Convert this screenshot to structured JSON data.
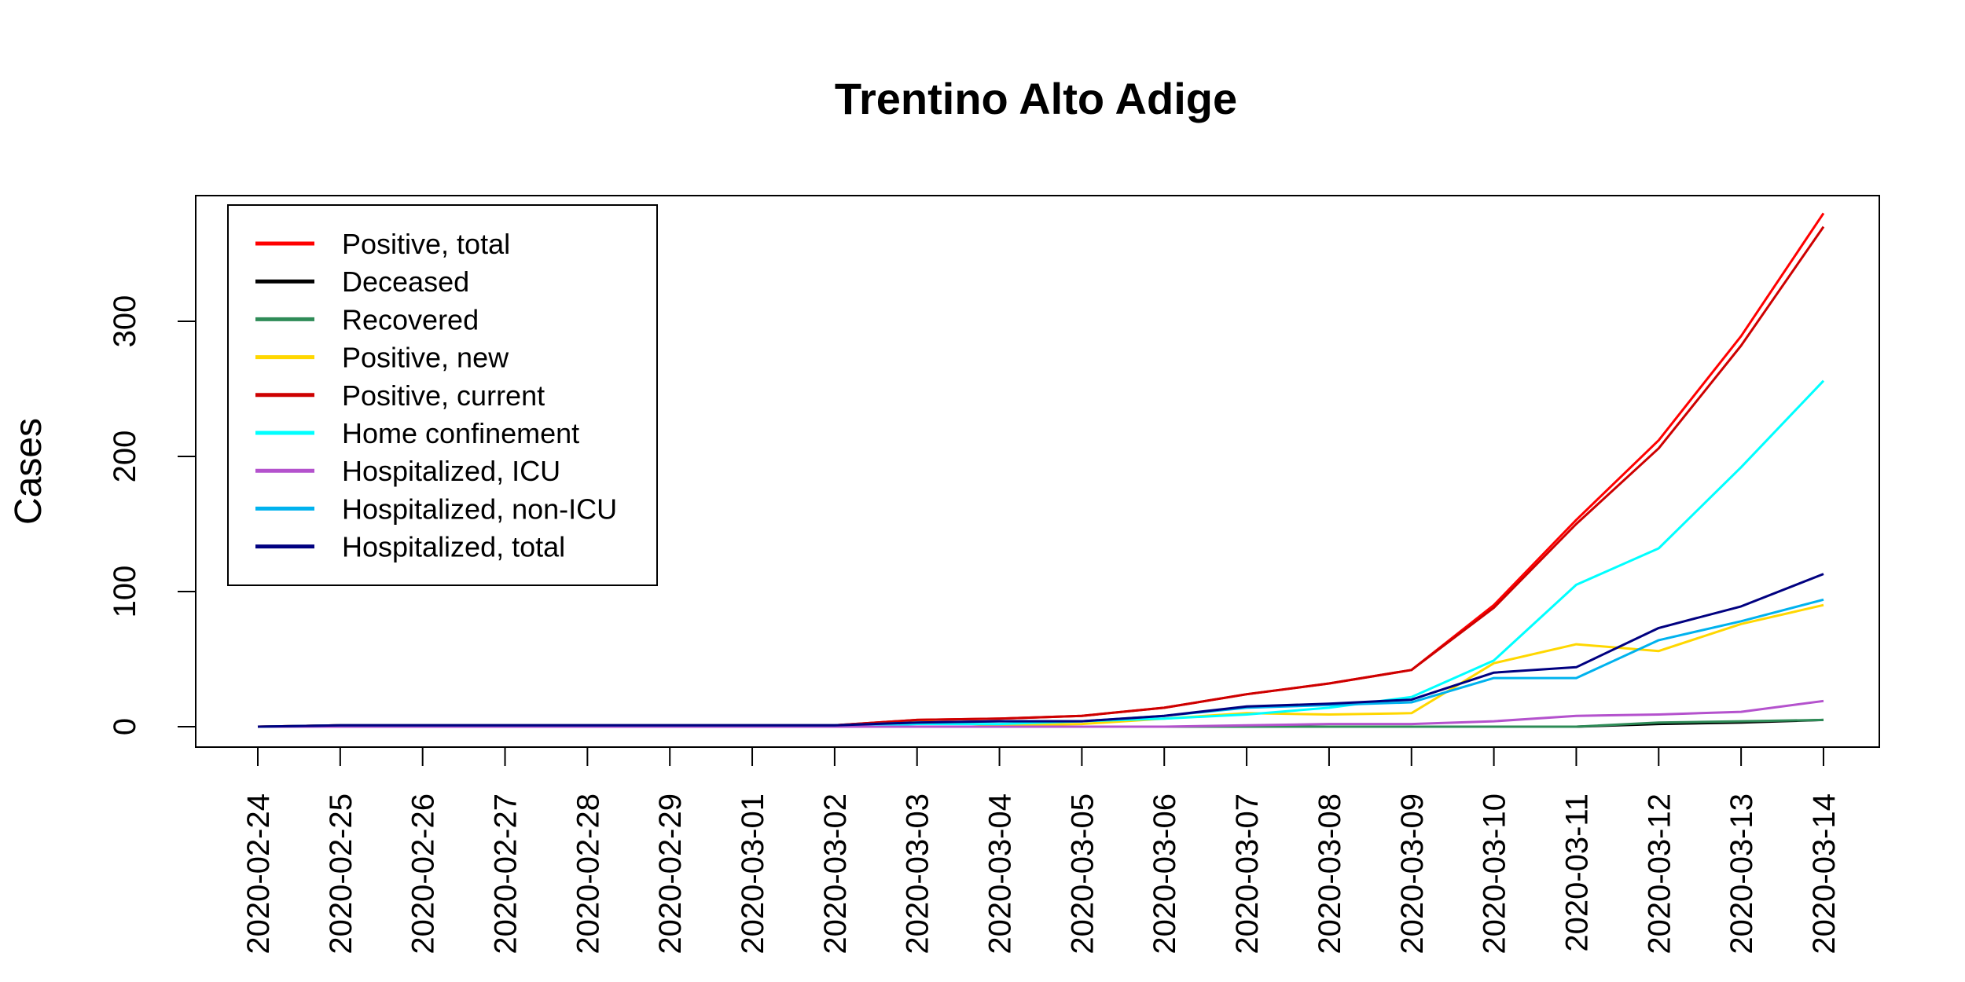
{
  "chart_data": {
    "type": "line",
    "title": "Trentino Alto Adige",
    "xlabel": "",
    "ylabel": "Cases",
    "ylim": [
      0,
      385
    ],
    "yticks": [
      0,
      100,
      200,
      300
    ],
    "grid": false,
    "legend_position": "top-left",
    "x": [
      "2020-02-24",
      "2020-02-25",
      "2020-02-26",
      "2020-02-27",
      "2020-02-28",
      "2020-02-29",
      "2020-03-01",
      "2020-03-02",
      "2020-03-03",
      "2020-03-04",
      "2020-03-05",
      "2020-03-06",
      "2020-03-07",
      "2020-03-08",
      "2020-03-09",
      "2020-03-10",
      "2020-03-11",
      "2020-03-12",
      "2020-03-13",
      "2020-03-14"
    ],
    "series": [
      {
        "name": "Positive, total",
        "color": "#ff0000",
        "values": [
          0,
          1,
          1,
          1,
          1,
          1,
          1,
          1,
          5,
          6,
          8,
          14,
          24,
          32,
          42,
          90,
          153,
          212,
          289,
          380
        ]
      },
      {
        "name": "Deceased",
        "color": "#000000",
        "values": [
          0,
          0,
          0,
          0,
          0,
          0,
          0,
          0,
          0,
          0,
          0,
          0,
          0,
          0,
          0,
          0,
          0,
          2,
          3,
          5
        ]
      },
      {
        "name": "Recovered",
        "color": "#2e8b57",
        "values": [
          0,
          0,
          0,
          0,
          0,
          0,
          0,
          0,
          0,
          0,
          0,
          0,
          0,
          0,
          0,
          0,
          0,
          3,
          4,
          5
        ]
      },
      {
        "name": "Positive, new",
        "color": "#ffd700",
        "values": [
          0,
          1,
          0,
          0,
          0,
          0,
          0,
          0,
          4,
          1,
          2,
          6,
          10,
          9,
          10,
          47,
          61,
          56,
          76,
          90
        ]
      },
      {
        "name": "Positive, current",
        "color": "#cd0000",
        "values": [
          0,
          1,
          1,
          1,
          1,
          1,
          1,
          1,
          5,
          6,
          8,
          14,
          24,
          32,
          42,
          88,
          150,
          206,
          282,
          370
        ]
      },
      {
        "name": "Home confinement",
        "color": "#00ffff",
        "values": [
          0,
          0,
          0,
          0,
          0,
          0,
          0,
          0,
          2,
          2,
          4,
          6,
          9,
          14,
          22,
          49,
          105,
          132,
          192,
          256
        ]
      },
      {
        "name": "Hospitalized, ICU",
        "color": "#b452cd",
        "values": [
          0,
          0,
          0,
          0,
          0,
          0,
          0,
          0,
          0,
          0,
          0,
          0,
          1,
          2,
          2,
          4,
          8,
          9,
          11,
          19
        ]
      },
      {
        "name": "Hospitalized, non-ICU",
        "color": "#00b2ee",
        "values": [
          0,
          1,
          1,
          1,
          1,
          1,
          1,
          1,
          3,
          4,
          4,
          8,
          14,
          16,
          18,
          36,
          36,
          64,
          78,
          94
        ]
      },
      {
        "name": "Hospitalized, total",
        "color": "#000080",
        "values": [
          0,
          1,
          1,
          1,
          1,
          1,
          1,
          1,
          3,
          4,
          4,
          8,
          15,
          17,
          20,
          40,
          44,
          73,
          89,
          113
        ]
      }
    ]
  }
}
